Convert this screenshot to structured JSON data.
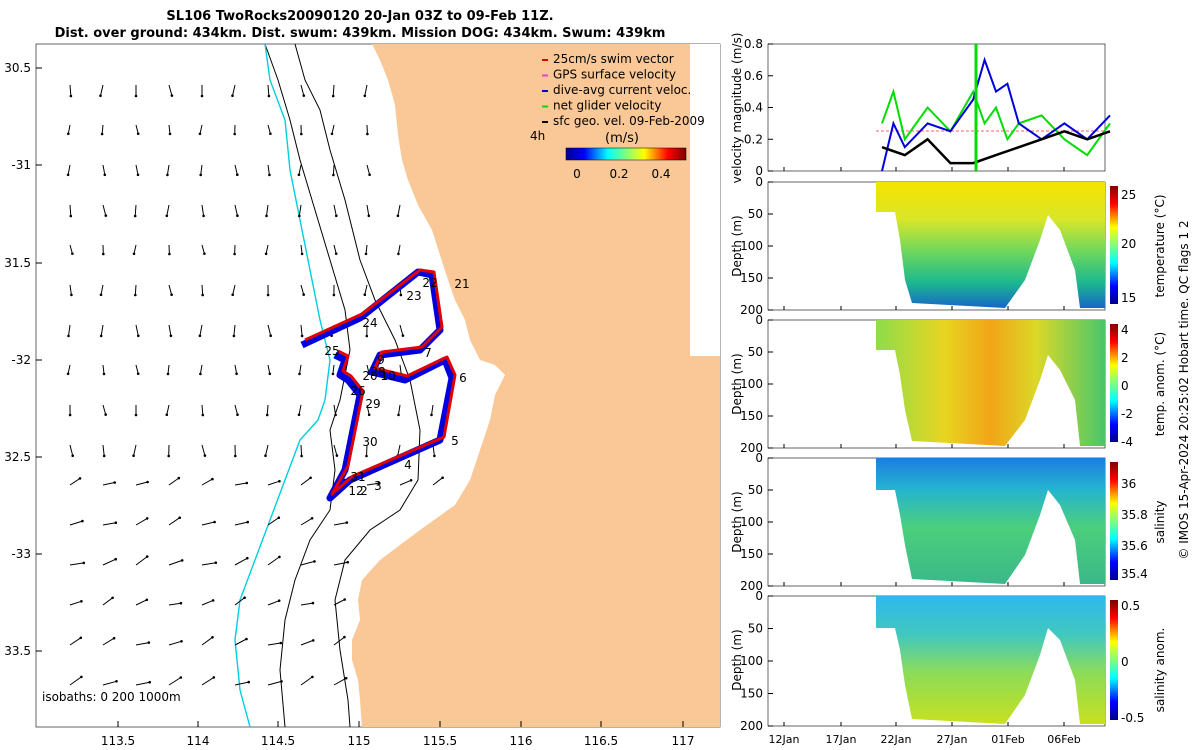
{
  "map": {
    "title_line1": "SL106 TwoRocks20090120 20-Jan 03Z to 09-Feb 11Z.",
    "title_line2": "Dist. over ground: 434km. Dist. swum: 439km. Mission DOG: 434km. Swum: 439km",
    "lon_ticks": [
      "113.5",
      "114",
      "114.5",
      "115",
      "115.5",
      "116",
      "116.5",
      "117"
    ],
    "lat_ticks": [
      "30.5",
      "-31",
      "31.5",
      "-32",
      "32.5",
      "-33",
      "33.5"
    ],
    "legend": [
      {
        "label": "25cm/s swim vector",
        "color": "#e00000"
      },
      {
        "label": "GPS surface velocity",
        "color": "#e040e0"
      },
      {
        "label": "dive-avg current veloc.",
        "color": "#0000cc"
      },
      {
        "label": "net glider velocity",
        "color": "#00dd00"
      },
      {
        "label": "sfc geo. vel. 09-Feb-2009",
        "color": "#000000"
      }
    ],
    "colorbar_title": "(m/s)",
    "colorbar_ticks": [
      "0",
      "0.2",
      "0.4"
    ],
    "scale_label": "4h",
    "isobath_label": "isobaths: 0   200  1000m",
    "day_labels": [
      "2",
      "3",
      "4",
      "5",
      "6",
      "7",
      "9",
      "10",
      "20",
      "21",
      "22",
      "23",
      "24",
      "25",
      "26",
      "28",
      "29",
      "30",
      "31",
      "12"
    ],
    "colors": {
      "land": "#f9c896",
      "track_red": "#e00000",
      "track_blue": "#0000dd",
      "isobath_200": "#00d0e0"
    }
  },
  "panels": {
    "time_ticks": [
      "12Jan",
      "17Jan",
      "22Jan",
      "27Jan",
      "01Feb",
      "06Feb"
    ],
    "velocity": {
      "ylabel": "velocity magnitude (m/s)",
      "yticks": [
        "0",
        "0.2",
        "0.4",
        "0.6",
        "0.8"
      ]
    },
    "temperature": {
      "ylabel": "Depth (m)",
      "cbar_label": "temperature (°C)",
      "cbar_ticks": [
        "25",
        "20",
        "15"
      ],
      "depth_ticks": [
        "0",
        "50",
        "100",
        "150",
        "200"
      ]
    },
    "temp_anom": {
      "ylabel": "Depth (m)",
      "cbar_label": "temp. anom. (°C)",
      "cbar_ticks": [
        "4",
        "2",
        "0",
        "-2",
        "-4"
      ],
      "depth_ticks": [
        "0",
        "50",
        "100",
        "150",
        "200"
      ]
    },
    "salinity": {
      "ylabel": "Depth (m)",
      "cbar_label": "salinity",
      "cbar_ticks": [
        "36",
        "35.8",
        "35.6",
        "35.4"
      ],
      "depth_ticks": [
        "0",
        "50",
        "100",
        "150",
        "200"
      ]
    },
    "sal_anom": {
      "ylabel": "Depth (m)",
      "cbar_label": "salinity anom.",
      "cbar_ticks": [
        "0.5",
        "0",
        "-0.5"
      ],
      "depth_ticks": [
        "0",
        "50",
        "100",
        "150",
        "200"
      ]
    }
  },
  "footer": {
    "credit": "© IMOS 15-Apr-2024 20:25:02 Hobart time. QC flags 1  2"
  },
  "chart_data": [
    {
      "type": "scatter",
      "title": "SL106 TwoRocks20090120 20-Jan 03Z to 09-Feb 11Z.",
      "xlabel": "",
      "ylabel": "",
      "xlim": [
        113.0,
        117.2
      ],
      "ylim": [
        -33.9,
        -30.4
      ],
      "series": [
        {
          "name": "glider track",
          "x": [
            114.85,
            115.1,
            115.4,
            115.48,
            115.45,
            115.3,
            115.05,
            115.0,
            115.2,
            115.45,
            115.55,
            115.45,
            115.1,
            114.82,
            114.98,
            115.05,
            115.1,
            115.0,
            114.98,
            115.02,
            114.99
          ],
          "y": [
            -31.92,
            -31.75,
            -31.55,
            -31.58,
            -31.85,
            -31.95,
            -31.98,
            -32.05,
            -32.08,
            -31.99,
            -32.08,
            -32.42,
            -32.6,
            -32.72,
            -32.68,
            -32.5,
            -32.35,
            -32.1,
            -32.05,
            -31.95,
            -31.9
          ]
        }
      ]
    },
    {
      "type": "line",
      "ylabel": "velocity magnitude (m/s)",
      "ylim": [
        0,
        0.8
      ],
      "x_ticks": [
        "12Jan",
        "17Jan",
        "22Jan",
        "27Jan",
        "01Feb",
        "06Feb"
      ],
      "series": [
        {
          "name": "25cm/s swim vector",
          "x": [
            20,
            40
          ],
          "values": [
            0.25,
            0.25
          ]
        },
        {
          "name": "dive-avg current veloc.",
          "x": [
            20,
            21,
            22,
            24,
            26,
            28,
            29,
            30,
            31,
            32,
            34,
            36,
            38,
            40
          ],
          "values": [
            0.0,
            0.3,
            0.15,
            0.3,
            0.25,
            0.45,
            0.7,
            0.5,
            0.55,
            0.3,
            0.2,
            0.3,
            0.2,
            0.35
          ]
        },
        {
          "name": "net glider velocity",
          "x": [
            20,
            21,
            22,
            24,
            26,
            28,
            29,
            30,
            31,
            32,
            34,
            36,
            38,
            40
          ],
          "values": [
            0.3,
            0.5,
            0.2,
            0.4,
            0.25,
            0.5,
            0.3,
            0.4,
            0.2,
            0.3,
            0.35,
            0.2,
            0.1,
            0.3
          ]
        },
        {
          "name": "sfc geo. vel. 09-Feb-2009",
          "x": [
            20,
            22,
            24,
            26,
            28,
            30,
            32,
            34,
            36,
            38,
            40
          ],
          "values": [
            0.15,
            0.1,
            0.2,
            0.05,
            0.05,
            0.1,
            0.15,
            0.2,
            0.25,
            0.2,
            0.25
          ]
        }
      ]
    },
    {
      "type": "heatmap",
      "ylabel": "Depth (m)",
      "ylim": [
        200,
        0
      ],
      "clabel": "temperature (°C)",
      "clim": [
        14,
        25
      ]
    },
    {
      "type": "heatmap",
      "ylabel": "Depth (m)",
      "ylim": [
        200,
        0
      ],
      "clabel": "temp. anom. (°C)",
      "clim": [
        -4,
        4
      ]
    },
    {
      "type": "heatmap",
      "ylabel": "Depth (m)",
      "ylim": [
        200,
        0
      ],
      "clabel": "salinity",
      "clim": [
        35.3,
        36.1
      ]
    },
    {
      "type": "heatmap",
      "ylabel": "Depth (m)",
      "ylim": [
        200,
        0
      ],
      "clabel": "salinity anom.",
      "clim": [
        -0.5,
        0.5
      ]
    }
  ]
}
